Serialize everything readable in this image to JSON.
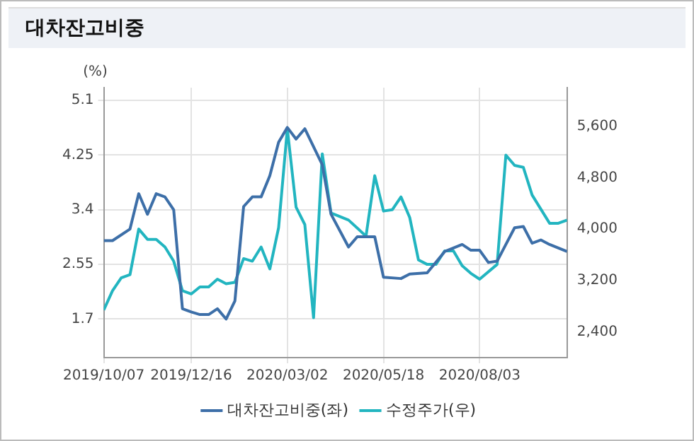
{
  "chart_data": {
    "type": "line",
    "title": "대차잔고비중",
    "ylabel": "(%)",
    "xlim": [
      "2019-10-07",
      "2020-10-12"
    ],
    "xticks": [
      {
        "value": "2019-10-07",
        "label": "2019/10/07"
      },
      {
        "value": "2019-12-16",
        "label": "2019/12/16"
      },
      {
        "value": "2020-03-02",
        "label": "2020/03/02"
      },
      {
        "value": "2020-05-18",
        "label": "2020/05/18"
      },
      {
        "value": "2020-08-03",
        "label": "2020/08/03"
      }
    ],
    "ylim": [
      1.1,
      5.3
    ],
    "yticks": [
      1.7,
      2.55,
      3.4,
      4.25,
      5.1
    ],
    "y2lim": [
      2000,
      6200
    ],
    "y2ticks": [
      {
        "value": 2400,
        "label": "2,400"
      },
      {
        "value": 3200,
        "label": "3,200"
      },
      {
        "value": 4000,
        "label": "4,000"
      },
      {
        "value": 4800,
        "label": "4,800"
      },
      {
        "value": 5600,
        "label": "5,600"
      }
    ],
    "grid": true,
    "legend": "bottom",
    "marker": "none",
    "line_style": "solid",
    "series": [
      {
        "name": "대차잔고비중(좌)",
        "color": "#3d6fa8",
        "x": [
          "2019-10-07",
          "2019-10-14",
          "2019-10-28",
          "2019-11-04",
          "2019-11-11",
          "2019-11-18",
          "2019-11-25",
          "2019-12-02",
          "2019-12-09",
          "2019-12-16",
          "2019-12-23",
          "2019-12-30",
          "2020-01-06",
          "2020-01-13",
          "2020-01-20",
          "2020-01-27",
          "2020-02-03",
          "2020-02-10",
          "2020-02-17",
          "2020-02-24",
          "2020-03-02",
          "2020-03-09",
          "2020-03-16",
          "2020-03-30",
          "2020-04-06",
          "2020-04-20",
          "2020-04-27",
          "2020-05-11",
          "2020-05-18",
          "2020-06-01",
          "2020-06-08",
          "2020-06-22",
          "2020-07-06",
          "2020-07-20",
          "2020-07-27",
          "2020-08-03",
          "2020-08-10",
          "2020-08-17",
          "2020-08-24",
          "2020-08-31",
          "2020-09-07",
          "2020-09-14",
          "2020-09-21",
          "2020-09-28",
          "2020-10-12"
        ],
        "values": [
          2.92,
          2.92,
          3.1,
          3.65,
          3.33,
          3.65,
          3.6,
          3.4,
          1.86,
          1.81,
          1.77,
          1.77,
          1.86,
          1.7,
          1.98,
          3.45,
          3.6,
          3.6,
          3.93,
          4.45,
          4.68,
          4.5,
          4.66,
          4.1,
          3.33,
          2.82,
          2.98,
          2.98,
          2.35,
          2.33,
          2.4,
          2.42,
          2.75,
          2.86,
          2.77,
          2.77,
          2.58,
          2.6,
          2.86,
          3.12,
          3.14,
          2.88,
          2.93,
          2.86,
          2.75
        ]
      },
      {
        "name": "수정주가(우)",
        "color": "#22b5c0",
        "axis": "y2",
        "x": [
          "2019-10-07",
          "2019-10-14",
          "2019-10-21",
          "2019-10-28",
          "2019-11-04",
          "2019-11-11",
          "2019-11-18",
          "2019-11-25",
          "2019-12-02",
          "2019-12-09",
          "2019-12-16",
          "2019-12-23",
          "2019-12-30",
          "2020-01-06",
          "2020-01-13",
          "2020-01-20",
          "2020-01-27",
          "2020-02-03",
          "2020-02-10",
          "2020-02-17",
          "2020-02-24",
          "2020-03-02",
          "2020-03-09",
          "2020-03-16",
          "2020-03-23",
          "2020-03-30",
          "2020-04-06",
          "2020-04-20",
          "2020-05-04",
          "2020-05-11",
          "2020-05-18",
          "2020-05-25",
          "2020-06-01",
          "2020-06-08",
          "2020-06-15",
          "2020-06-22",
          "2020-06-29",
          "2020-07-06",
          "2020-07-13",
          "2020-07-20",
          "2020-07-27",
          "2020-08-03",
          "2020-08-17",
          "2020-08-24",
          "2020-08-31",
          "2020-09-07",
          "2020-09-14",
          "2020-09-28",
          "2020-10-05",
          "2020-10-12"
        ],
        "values": [
          2740,
          3040,
          3240,
          3290,
          4000,
          3840,
          3840,
          3720,
          3500,
          3040,
          2990,
          3100,
          3100,
          3220,
          3150,
          3170,
          3540,
          3500,
          3720,
          3380,
          4020,
          5560,
          4340,
          4070,
          2620,
          5170,
          4250,
          4140,
          3890,
          4830,
          4280,
          4300,
          4500,
          4180,
          3520,
          3450,
          3450,
          3660,
          3660,
          3430,
          3310,
          3220,
          3450,
          5150,
          4990,
          4960,
          4530,
          4090,
          4090,
          4140
        ]
      }
    ]
  }
}
